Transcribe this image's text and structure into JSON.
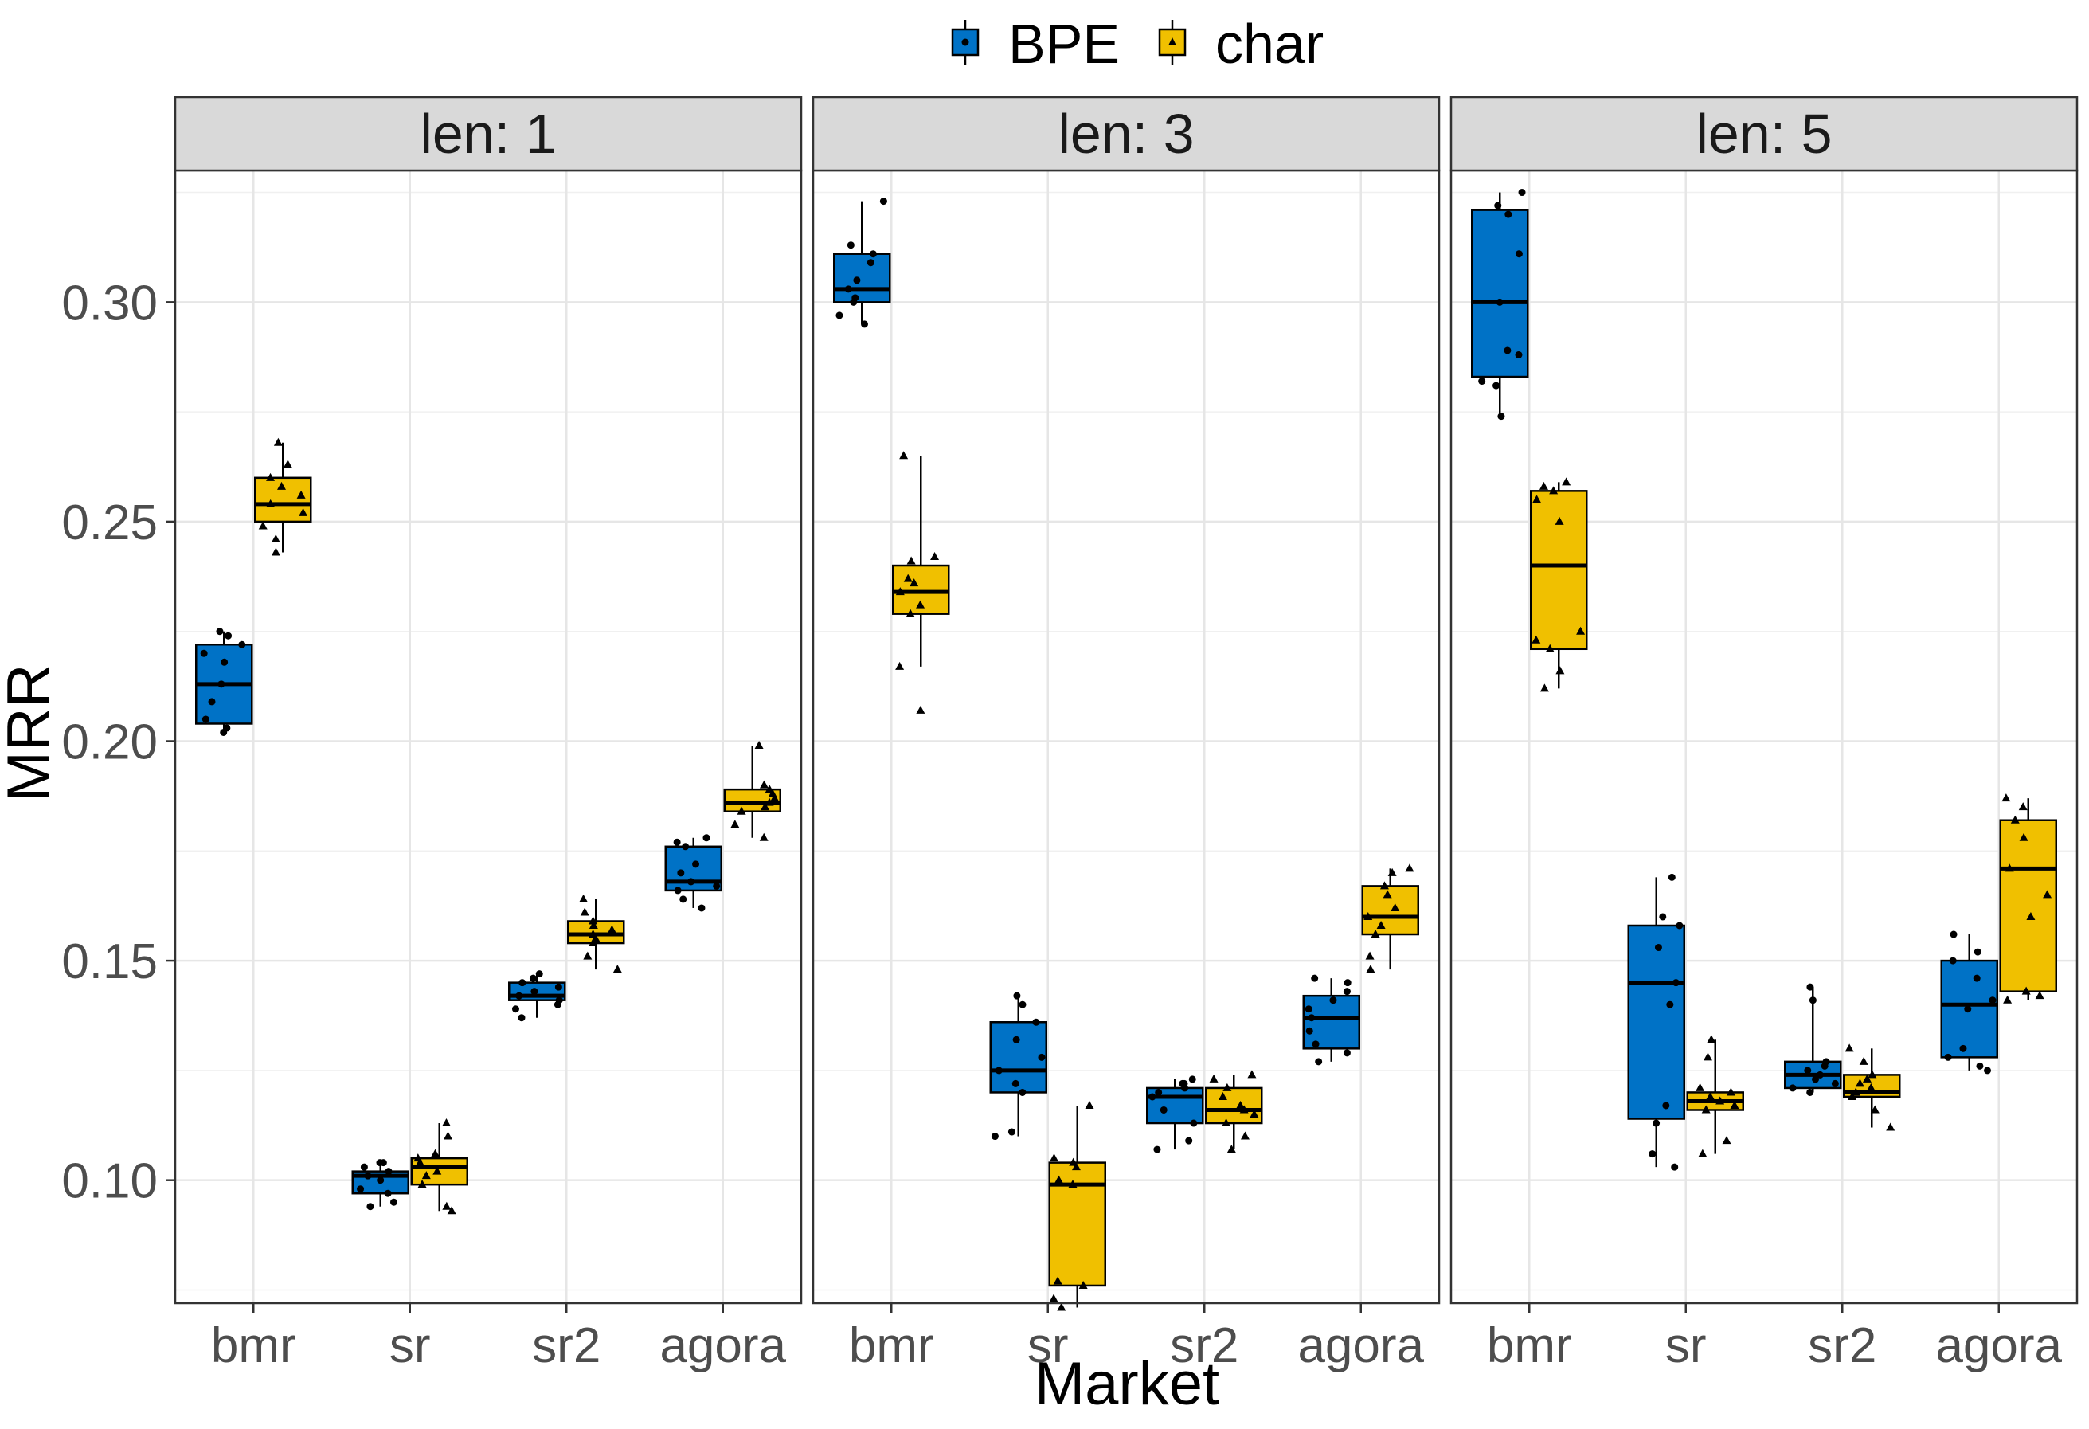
{
  "chart_data": {
    "type": "boxplot",
    "xlabel": "Market",
    "ylabel": "MRR",
    "categories": [
      "bmr",
      "sr",
      "sr2",
      "agora"
    ],
    "y_ticks": [
      0.1,
      0.15,
      0.2,
      0.25,
      0.3
    ],
    "y_tick_labels": [
      "0.10",
      "0.15",
      "0.20",
      "0.25",
      "0.30"
    ],
    "ylim": [
      0.072,
      0.33
    ],
    "grid": true,
    "legend": {
      "position": "top",
      "items": [
        {
          "name": "BPE",
          "color": "#0072C6",
          "marker": "circle"
        },
        {
          "name": "char",
          "color": "#F0C000",
          "marker": "triangle"
        }
      ]
    },
    "panels": [
      {
        "title": "len: 1",
        "boxes": {
          "BPE": [
            {
              "category": "bmr",
              "min": 0.202,
              "q1": 0.204,
              "median": 0.213,
              "q3": 0.222,
              "max": 0.225,
              "points": [
                0.202,
                0.203,
                0.205,
                0.209,
                0.213,
                0.218,
                0.22,
                0.222,
                0.224,
                0.225
              ]
            },
            {
              "category": "sr",
              "min": 0.094,
              "q1": 0.097,
              "median": 0.101,
              "q3": 0.102,
              "max": 0.104,
              "points": [
                0.094,
                0.095,
                0.097,
                0.098,
                0.1,
                0.101,
                0.102,
                0.103,
                0.104,
                0.104
              ]
            },
            {
              "category": "sr2",
              "min": 0.137,
              "q1": 0.141,
              "median": 0.142,
              "q3": 0.145,
              "max": 0.147,
              "points": [
                0.137,
                0.139,
                0.14,
                0.141,
                0.142,
                0.143,
                0.144,
                0.145,
                0.146,
                0.147
              ]
            },
            {
              "category": "agora",
              "min": 0.162,
              "q1": 0.166,
              "median": 0.168,
              "q3": 0.176,
              "max": 0.178,
              "points": [
                0.162,
                0.164,
                0.166,
                0.167,
                0.168,
                0.17,
                0.172,
                0.176,
                0.177,
                0.178
              ]
            }
          ],
          "char": [
            {
              "category": "bmr",
              "min": 0.243,
              "q1": 0.25,
              "median": 0.254,
              "q3": 0.26,
              "max": 0.268,
              "points": [
                0.243,
                0.246,
                0.249,
                0.252,
                0.254,
                0.256,
                0.258,
                0.26,
                0.263,
                0.268
              ]
            },
            {
              "category": "sr",
              "min": 0.093,
              "q1": 0.099,
              "median": 0.103,
              "q3": 0.105,
              "max": 0.113,
              "points": [
                0.093,
                0.094,
                0.099,
                0.101,
                0.102,
                0.104,
                0.105,
                0.106,
                0.11,
                0.113
              ]
            },
            {
              "category": "sr2",
              "min": 0.148,
              "q1": 0.154,
              "median": 0.156,
              "q3": 0.159,
              "max": 0.164,
              "points": [
                0.148,
                0.151,
                0.154,
                0.155,
                0.156,
                0.157,
                0.158,
                0.159,
                0.161,
                0.164
              ]
            },
            {
              "category": "agora",
              "min": 0.178,
              "q1": 0.184,
              "median": 0.186,
              "q3": 0.189,
              "max": 0.199,
              "points": [
                0.178,
                0.181,
                0.184,
                0.185,
                0.186,
                0.187,
                0.188,
                0.189,
                0.19,
                0.199
              ]
            }
          ]
        }
      },
      {
        "title": "len: 3",
        "boxes": {
          "BPE": [
            {
              "category": "bmr",
              "min": 0.295,
              "q1": 0.3,
              "median": 0.303,
              "q3": 0.311,
              "max": 0.323,
              "points": [
                0.295,
                0.297,
                0.3,
                0.301,
                0.303,
                0.305,
                0.309,
                0.311,
                0.313,
                0.323
              ]
            },
            {
              "category": "sr",
              "min": 0.11,
              "q1": 0.12,
              "median": 0.125,
              "q3": 0.136,
              "max": 0.142,
              "points": [
                0.11,
                0.111,
                0.12,
                0.122,
                0.125,
                0.128,
                0.132,
                0.136,
                0.14,
                0.142
              ]
            },
            {
              "category": "sr2",
              "min": 0.107,
              "q1": 0.113,
              "median": 0.119,
              "q3": 0.121,
              "max": 0.123,
              "points": [
                0.107,
                0.109,
                0.113,
                0.116,
                0.119,
                0.12,
                0.121,
                0.122,
                0.122,
                0.123
              ]
            },
            {
              "category": "agora",
              "min": 0.127,
              "q1": 0.13,
              "median": 0.137,
              "q3": 0.142,
              "max": 0.146,
              "points": [
                0.127,
                0.129,
                0.131,
                0.134,
                0.137,
                0.139,
                0.141,
                0.143,
                0.145,
                0.146
              ]
            }
          ],
          "char": [
            {
              "category": "bmr",
              "min": 0.217,
              "q1": 0.229,
              "median": 0.234,
              "q3": 0.24,
              "max": 0.265,
              "points": [
                0.207,
                0.217,
                0.229,
                0.231,
                0.234,
                0.236,
                0.237,
                0.241,
                0.242,
                0.265
              ]
            },
            {
              "category": "sr",
              "min": 0.071,
              "q1": 0.076,
              "median": 0.099,
              "q3": 0.104,
              "max": 0.117,
              "points": [
                0.071,
                0.073,
                0.076,
                0.077,
                0.099,
                0.1,
                0.103,
                0.104,
                0.105,
                0.117
              ]
            },
            {
              "category": "sr2",
              "min": 0.107,
              "q1": 0.113,
              "median": 0.116,
              "q3": 0.121,
              "max": 0.124,
              "points": [
                0.107,
                0.11,
                0.113,
                0.115,
                0.116,
                0.117,
                0.119,
                0.121,
                0.123,
                0.124
              ]
            },
            {
              "category": "agora",
              "min": 0.148,
              "q1": 0.156,
              "median": 0.16,
              "q3": 0.167,
              "max": 0.171,
              "points": [
                0.148,
                0.151,
                0.156,
                0.158,
                0.16,
                0.162,
                0.165,
                0.167,
                0.17,
                0.171
              ]
            }
          ]
        }
      },
      {
        "title": "len: 5",
        "boxes": {
          "BPE": [
            {
              "category": "bmr",
              "min": 0.274,
              "q1": 0.283,
              "median": 0.3,
              "q3": 0.321,
              "max": 0.325,
              "points": [
                0.274,
                0.281,
                0.282,
                0.288,
                0.289,
                0.3,
                0.311,
                0.32,
                0.322,
                0.325
              ]
            },
            {
              "category": "sr",
              "min": 0.103,
              "q1": 0.114,
              "median": 0.145,
              "q3": 0.158,
              "max": 0.169,
              "points": [
                0.103,
                0.106,
                0.113,
                0.117,
                0.14,
                0.145,
                0.153,
                0.158,
                0.16,
                0.169
              ]
            },
            {
              "category": "sr2",
              "min": 0.12,
              "q1": 0.121,
              "median": 0.124,
              "q3": 0.127,
              "max": 0.144,
              "points": [
                0.12,
                0.121,
                0.122,
                0.123,
                0.124,
                0.125,
                0.126,
                0.127,
                0.141,
                0.144
              ]
            },
            {
              "category": "agora",
              "min": 0.125,
              "q1": 0.128,
              "median": 0.14,
              "q3": 0.15,
              "max": 0.156,
              "points": [
                0.125,
                0.126,
                0.128,
                0.13,
                0.139,
                0.141,
                0.146,
                0.15,
                0.152,
                0.156
              ]
            }
          ],
          "char": [
            {
              "category": "bmr",
              "min": 0.212,
              "q1": 0.221,
              "median": 0.24,
              "q3": 0.257,
              "max": 0.259,
              "points": [
                0.212,
                0.216,
                0.221,
                0.223,
                0.225,
                0.25,
                0.255,
                0.257,
                0.258,
                0.259
              ]
            },
            {
              "category": "sr",
              "min": 0.106,
              "q1": 0.116,
              "median": 0.118,
              "q3": 0.12,
              "max": 0.132,
              "points": [
                0.106,
                0.109,
                0.116,
                0.117,
                0.118,
                0.119,
                0.12,
                0.121,
                0.128,
                0.132
              ]
            },
            {
              "category": "sr2",
              "min": 0.112,
              "q1": 0.119,
              "median": 0.12,
              "q3": 0.124,
              "max": 0.13,
              "points": [
                0.112,
                0.116,
                0.119,
                0.12,
                0.121,
                0.122,
                0.123,
                0.124,
                0.127,
                0.13
              ]
            },
            {
              "category": "agora",
              "min": 0.141,
              "q1": 0.143,
              "median": 0.171,
              "q3": 0.182,
              "max": 0.187,
              "points": [
                0.141,
                0.142,
                0.143,
                0.16,
                0.165,
                0.171,
                0.178,
                0.182,
                0.185,
                0.187
              ]
            }
          ]
        }
      }
    ]
  }
}
